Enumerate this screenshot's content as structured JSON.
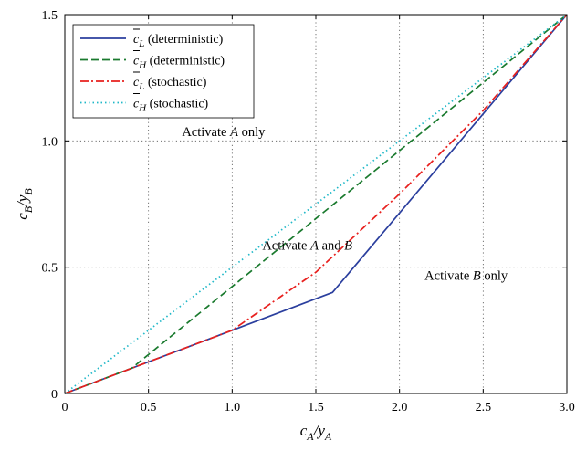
{
  "chart_data": {
    "type": "line",
    "title": "",
    "xlabel": {
      "main": "c",
      "main_sub": "A",
      "sep": "/y",
      "sep_sub": "A"
    },
    "ylabel": {
      "main": "c",
      "main_sub": "B",
      "sep": "/y",
      "sep_sub": "B"
    },
    "xlim": [
      0,
      3.0
    ],
    "ylim": [
      0,
      1.5
    ],
    "xticks": [
      0,
      0.5,
      1.0,
      1.5,
      2.0,
      2.5,
      3.0
    ],
    "xtick_labels": [
      "0",
      "0.5",
      "1.0",
      "1.5",
      "2.0",
      "2.5",
      "3.0"
    ],
    "yticks": [
      0,
      0.5,
      1.0,
      1.5
    ],
    "ytick_labels": [
      "0",
      "0.5",
      "1.0",
      "1.5"
    ],
    "grid": true,
    "legend_position": "top-left",
    "series": [
      {
        "name": {
          "sym": "c",
          "sub": "L",
          "rest": " (deterministic)"
        },
        "color": "#2b3f9e",
        "dash": "solid",
        "x": [
          0,
          1.0,
          1.6,
          3.0
        ],
        "y": [
          0,
          0.25,
          0.4,
          1.5
        ]
      },
      {
        "name": {
          "sym": "c",
          "sub": "H",
          "rest": " (deterministic)"
        },
        "color": "#1a7a2e",
        "dash": "dashed",
        "x": [
          0,
          0.4,
          3.0
        ],
        "y": [
          0,
          0.1,
          1.5
        ]
      },
      {
        "name": {
          "sym": "c",
          "sub": "L",
          "rest": " (stochastic)"
        },
        "color": "#e8201e",
        "dash": "dashdot",
        "x": [
          0,
          1.0,
          1.5,
          2.0,
          2.5,
          3.0
        ],
        "y": [
          0,
          0.25,
          0.48,
          0.79,
          1.12,
          1.5
        ]
      },
      {
        "name": {
          "sym": "c",
          "sub": "H",
          "rest": " (stochastic)"
        },
        "color": "#20b8c8",
        "dash": "dotted",
        "x": [
          0,
          3.0
        ],
        "y": [
          0,
          1.5
        ]
      }
    ],
    "annotations": [
      {
        "pre": "Activate ",
        "it": "A",
        "post": " only",
        "x": 0.7,
        "y": 1.02
      },
      {
        "pre": "Activate ",
        "it": "A",
        "mid": " and ",
        "it2": "B",
        "x": 1.18,
        "y": 0.57
      },
      {
        "pre": "Activate ",
        "it": "B",
        "post": " only",
        "x": 2.15,
        "y": 0.45
      }
    ]
  }
}
